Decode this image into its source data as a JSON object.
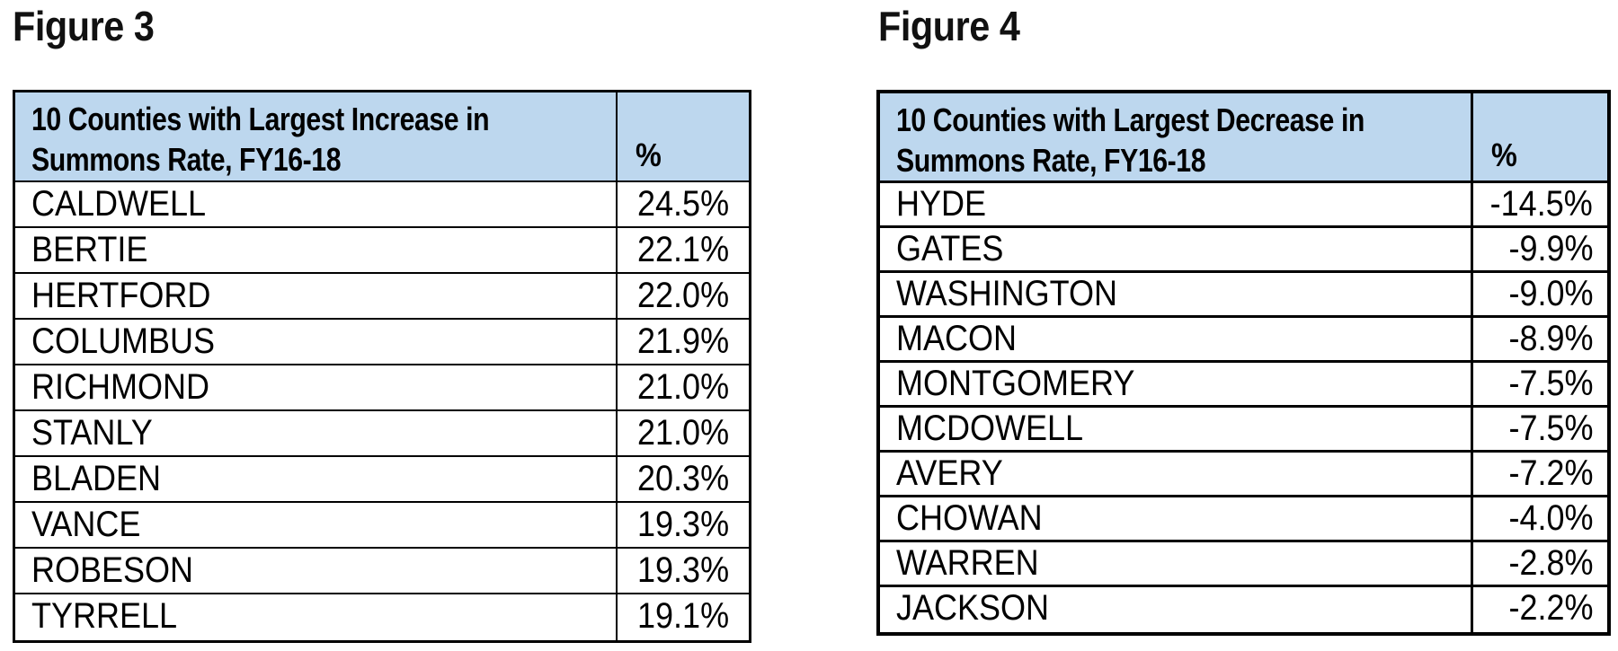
{
  "page": {
    "background": "#ffffff",
    "header_fill": "#BDD7EE",
    "border_color": "#000000"
  },
  "figure3": {
    "title": "Figure 3",
    "header": {
      "line1": "10 Counties with Largest Increase in",
      "line2": "Summons Rate, FY16-18",
      "pct": "%"
    },
    "rows": [
      {
        "county": "CALDWELL",
        "pct": "24.5%"
      },
      {
        "county": "BERTIE",
        "pct": "22.1%"
      },
      {
        "county": "HERTFORD",
        "pct": "22.0%"
      },
      {
        "county": "COLUMBUS",
        "pct": "21.9%"
      },
      {
        "county": "RICHMOND",
        "pct": "21.0%"
      },
      {
        "county": "STANLY",
        "pct": "21.0%"
      },
      {
        "county": "BLADEN",
        "pct": "20.3%"
      },
      {
        "county": "VANCE",
        "pct": "19.3%"
      },
      {
        "county": "ROBESON",
        "pct": "19.3%"
      },
      {
        "county": "TYRRELL",
        "pct": "19.1%"
      }
    ]
  },
  "figure4": {
    "title": "Figure 4",
    "header": {
      "line1": "10 Counties with Largest Decrease in",
      "line2": "Summons Rate, FY16-18",
      "pct": "%"
    },
    "rows": [
      {
        "county": "HYDE",
        "pct": "-14.5%"
      },
      {
        "county": "GATES",
        "pct": "-9.9%"
      },
      {
        "county": "WASHINGTON",
        "pct": "-9.0%"
      },
      {
        "county": "MACON",
        "pct": "-8.9%"
      },
      {
        "county": "MONTGOMERY",
        "pct": "-7.5%"
      },
      {
        "county": "MCDOWELL",
        "pct": "-7.5%"
      },
      {
        "county": "AVERY",
        "pct": "-7.2%"
      },
      {
        "county": "CHOWAN",
        "pct": "-4.0%"
      },
      {
        "county": "WARREN",
        "pct": "-2.8%"
      },
      {
        "county": "JACKSON",
        "pct": "-2.2%"
      }
    ]
  }
}
